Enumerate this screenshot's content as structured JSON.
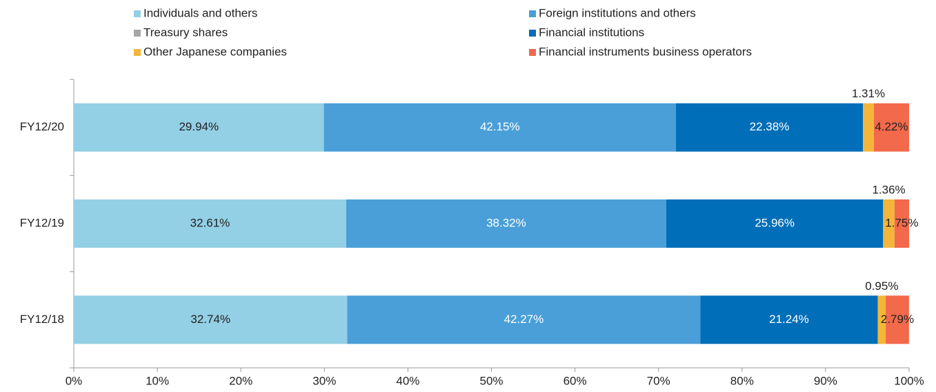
{
  "chart_data": {
    "type": "stacked-barh",
    "categories": [
      "FY12/20",
      "FY12/19",
      "FY12/18"
    ],
    "series": [
      {
        "name": "Individuals and others",
        "color": "#93cfe5",
        "label_color": "#222",
        "values": [
          29.94,
          32.61,
          32.74
        ],
        "value_labels": [
          "29.94%",
          "32.61%",
          "32.74%"
        ]
      },
      {
        "name": "Foreign institutions and others",
        "color": "#4a9fd8",
        "label_color": "#fff",
        "values": [
          42.15,
          38.32,
          42.27
        ],
        "value_labels": [
          "42.15%",
          "38.32%",
          "42.27%"
        ]
      },
      {
        "name": "Treasury shares",
        "color": "#a6a6a6",
        "values": [
          0,
          0,
          0
        ]
      },
      {
        "name": "Financial institutions",
        "color": "#006eb8",
        "label_color": "#fff",
        "values": [
          22.38,
          25.96,
          21.24
        ],
        "value_labels": [
          "22.38%",
          "25.96%",
          "21.24%"
        ]
      },
      {
        "name": "Other Japanese companies",
        "color": "#f4b63a",
        "label_color": "#222",
        "label_position": "above",
        "values": [
          1.31,
          1.36,
          0.95
        ],
        "value_labels": [
          "1.31%",
          "1.36%",
          "0.95%"
        ]
      },
      {
        "name": "Financial instruments business operators",
        "color": "#f3694b",
        "label_color": "#222",
        "values": [
          4.22,
          1.75,
          2.79
        ],
        "value_labels": [
          "4.22%",
          "1.75%",
          "2.79%"
        ]
      }
    ],
    "xlim": [
      0,
      100
    ],
    "xticks": [
      {
        "value": 0,
        "label": "0%"
      },
      {
        "value": 10,
        "label": "10%"
      },
      {
        "value": 20,
        "label": "20%"
      },
      {
        "value": 30,
        "label": "30%"
      },
      {
        "value": 40,
        "label": "40%"
      },
      {
        "value": 50,
        "label": "50%"
      },
      {
        "value": 60,
        "label": "60%"
      },
      {
        "value": 70,
        "label": "70%"
      },
      {
        "value": 80,
        "label": "80%"
      },
      {
        "value": 90,
        "label": "90%"
      },
      {
        "value": 100,
        "label": "100%"
      }
    ],
    "legend": "top"
  }
}
